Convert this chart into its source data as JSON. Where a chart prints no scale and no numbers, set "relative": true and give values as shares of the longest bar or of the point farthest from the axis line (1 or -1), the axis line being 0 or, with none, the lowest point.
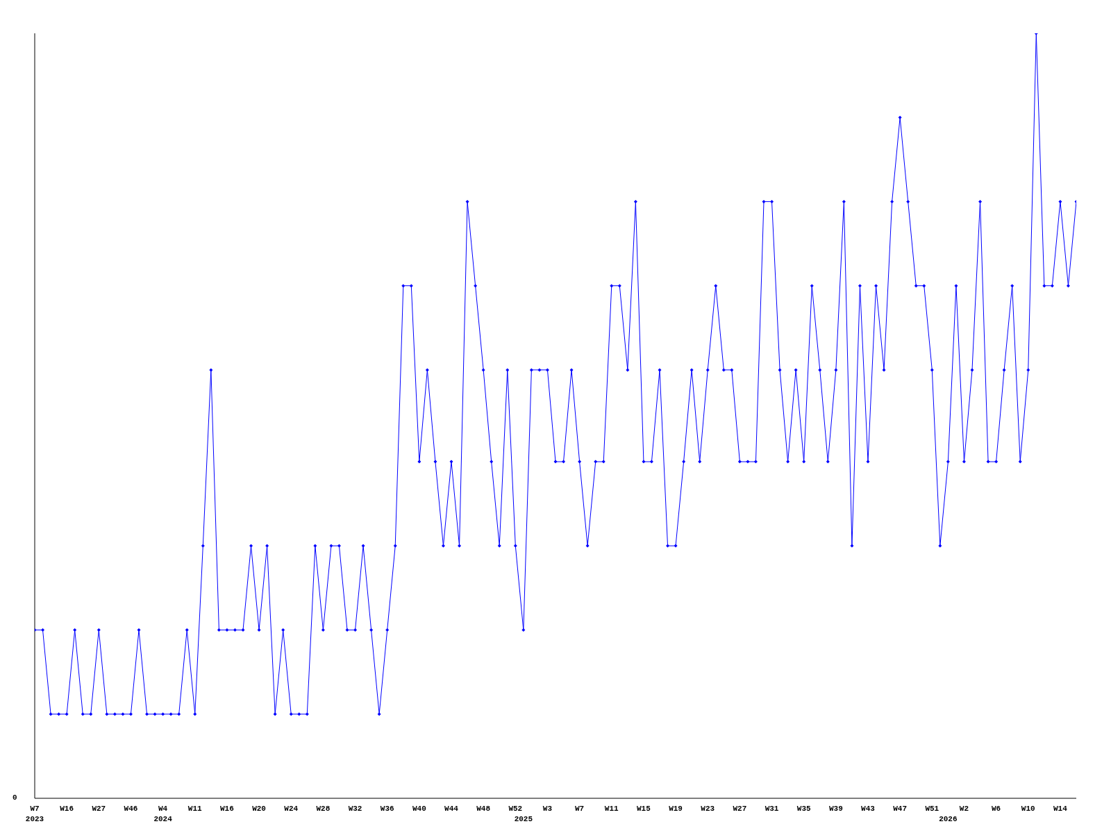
{
  "chart_data": {
    "type": "line",
    "relative": true,
    "categories": [
      "W7\n2023",
      null,
      null,
      null,
      "W16",
      null,
      null,
      null,
      "W27",
      null,
      null,
      null,
      "W46",
      null,
      null,
      null,
      "W4\n2024",
      null,
      null,
      null,
      "W11",
      null,
      null,
      null,
      "W16",
      null,
      null,
      null,
      "W20",
      null,
      null,
      null,
      "W24",
      null,
      null,
      null,
      "W28",
      null,
      null,
      null,
      "W32",
      null,
      null,
      null,
      "W36",
      null,
      null,
      null,
      "W40",
      null,
      null,
      null,
      "W44",
      null,
      null,
      null,
      "W48",
      null,
      null,
      null,
      "W52",
      "\n2025",
      null,
      null,
      "W3",
      null,
      null,
      null,
      "W7",
      null,
      null,
      null,
      "W11",
      null,
      null,
      null,
      "W15",
      null,
      null,
      null,
      "W19",
      null,
      null,
      null,
      "W23",
      null,
      null,
      null,
      "W27",
      null,
      null,
      null,
      "W31",
      null,
      null,
      null,
      "W35",
      null,
      null,
      null,
      "W39",
      null,
      null,
      null,
      "W43",
      null,
      null,
      null,
      "W47",
      null,
      null,
      null,
      "W51",
      null,
      "\n2026",
      null,
      "W2",
      null,
      null,
      null,
      "W6",
      null,
      null,
      null,
      "W10",
      null,
      null,
      null,
      "W14",
      null,
      null
    ],
    "series": [
      {
        "color": "#0000ff",
        "values": [
          0.22,
          0.22,
          0.11,
          0.11,
          0.11,
          0.22,
          0.11,
          0.11,
          0.22,
          0.11,
          0.11,
          0.11,
          0.11,
          0.22,
          0.11,
          0.11,
          0.11,
          0.11,
          0.11,
          0.22,
          0.11,
          0.33,
          0.56,
          0.22,
          0.22,
          0.22,
          0.22,
          0.33,
          0.22,
          0.33,
          0.11,
          0.22,
          0.11,
          0.11,
          0.11,
          0.33,
          0.22,
          0.33,
          0.33,
          0.22,
          0.22,
          0.33,
          0.22,
          0.11,
          0.22,
          0.33,
          0.67,
          0.67,
          0.44,
          0.56,
          0.44,
          0.33,
          0.44,
          0.33,
          0.78,
          0.67,
          0.56,
          0.44,
          0.33,
          0.56,
          0.33,
          0.22,
          0.56,
          0.56,
          0.56,
          0.44,
          0.44,
          0.56,
          0.44,
          0.33,
          0.44,
          0.44,
          0.67,
          0.67,
          0.56,
          0.78,
          0.44,
          0.44,
          0.56,
          0.33,
          0.33,
          0.44,
          0.56,
          0.44,
          0.56,
          0.67,
          0.56,
          0.56,
          0.44,
          0.44,
          0.44,
          0.78,
          0.78,
          0.56,
          0.44,
          0.56,
          0.44,
          0.67,
          0.56,
          0.44,
          0.56,
          0.78,
          0.33,
          0.67,
          0.44,
          0.67,
          0.56,
          0.78,
          0.89,
          0.78,
          0.67,
          0.67,
          0.56,
          0.33,
          0.44,
          0.67,
          0.44,
          0.56,
          0.78,
          0.44,
          0.44,
          0.56,
          0.67,
          0.44,
          0.56,
          1,
          0.67,
          0.67,
          0.78,
          0.67,
          0.78
        ]
      }
    ],
    "annotations": [
      "0"
    ],
    "grid": false,
    "legend": false,
    "marker": "diamond",
    "line_style": "solid"
  }
}
